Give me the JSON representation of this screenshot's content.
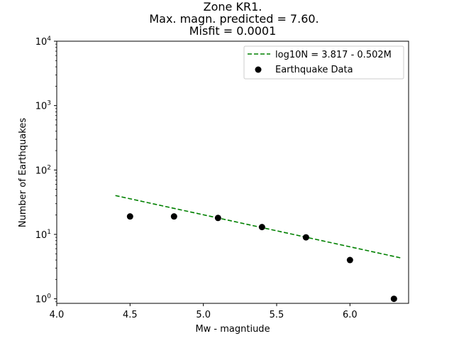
{
  "chart_data": {
    "type": "scatter",
    "title_lines": [
      "Zone KR1.",
      "Max. magn. predicted = 7.60.",
      "Misfit = 0.0001"
    ],
    "xlabel": "Mw - magntiude",
    "ylabel": "Number of Earthquakes",
    "xlim": [
      4.0,
      6.4
    ],
    "ylim": [
      0.85,
      10000
    ],
    "yscale": "log",
    "grid": false,
    "legend_position": "upper right",
    "x_ticks": [
      4.0,
      4.5,
      5.0,
      5.5,
      6.0
    ],
    "x_tick_labels": [
      "4.0",
      "4.5",
      "5.0",
      "5.5",
      "6.0"
    ],
    "y_ticks": [
      1,
      10,
      100,
      1000,
      10000
    ],
    "y_tick_labels": [
      {
        "base": "10",
        "exp": "0"
      },
      {
        "base": "10",
        "exp": "1"
      },
      {
        "base": "10",
        "exp": "2"
      },
      {
        "base": "10",
        "exp": "3"
      },
      {
        "base": "10",
        "exp": "4"
      }
    ],
    "series": [
      {
        "name": "log10N = 3.817 - 0.502M",
        "kind": "line",
        "style": "dashed",
        "color": "#008000",
        "x": [
          4.4,
          6.35
        ],
        "y": [
          40.1,
          4.3
        ]
      },
      {
        "name": "Earthquake Data",
        "kind": "scatter",
        "color": "#000000",
        "x": [
          4.5,
          4.8,
          5.1,
          5.4,
          5.7,
          6.0,
          6.3
        ],
        "y": [
          19,
          19,
          18,
          13,
          9,
          4,
          1
        ]
      }
    ]
  }
}
